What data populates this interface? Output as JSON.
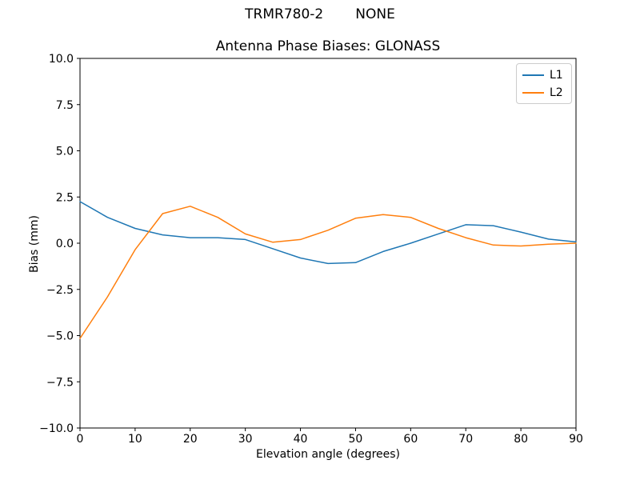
{
  "figure": {
    "suptitle_left": "TRMR780-2",
    "suptitle_right": "NONE",
    "axes_title": "Antenna Phase Biases: GLONASS",
    "xlabel": "Elevation angle (degrees)",
    "ylabel": "Bias (mm)"
  },
  "chart_data": {
    "type": "line",
    "suptitle": "TRMR780-2        NONE",
    "title": "Antenna Phase Biases: GLONASS",
    "xlabel": "Elevation angle (degrees)",
    "ylabel": "Bias (mm)",
    "xlim": [
      0,
      90
    ],
    "ylim": [
      -10,
      10
    ],
    "grid": false,
    "background_color": "#ffffff",
    "spine_color": "#000000",
    "xticks": [
      0,
      10,
      20,
      30,
      40,
      50,
      60,
      70,
      80,
      90
    ],
    "xtick_labels": [
      "0",
      "10",
      "20",
      "30",
      "40",
      "50",
      "60",
      "70",
      "80",
      "90"
    ],
    "yticks": [
      10,
      7.5,
      5,
      2.5,
      0,
      -2.5,
      -5,
      -7.5,
      -10
    ],
    "ytick_labels": [
      "10.0",
      "7.5",
      "5.0",
      "2.5",
      "0.0",
      "−2.5",
      "−5.0",
      "−7.5",
      "−10.0"
    ],
    "legend": {
      "position": "upper right",
      "entries": [
        "L1",
        "L2"
      ]
    },
    "x": [
      0,
      5,
      10,
      15,
      20,
      25,
      30,
      35,
      40,
      45,
      50,
      55,
      60,
      65,
      70,
      75,
      80,
      85,
      90
    ],
    "series": [
      {
        "name": "L1",
        "color": "#1f77b4",
        "values": [
          2.25,
          1.4,
          0.8,
          0.45,
          0.3,
          0.3,
          0.2,
          -0.3,
          -0.8,
          -1.1,
          -1.05,
          -0.45,
          0.0,
          0.5,
          1.0,
          0.95,
          0.6,
          0.22,
          0.07
        ]
      },
      {
        "name": "L2",
        "color": "#ff7f0e",
        "values": [
          -5.15,
          -2.9,
          -0.35,
          1.6,
          2.0,
          1.4,
          0.5,
          0.05,
          0.2,
          0.7,
          1.35,
          1.55,
          1.4,
          0.8,
          0.3,
          -0.1,
          -0.15,
          -0.05,
          0.0
        ]
      }
    ]
  }
}
